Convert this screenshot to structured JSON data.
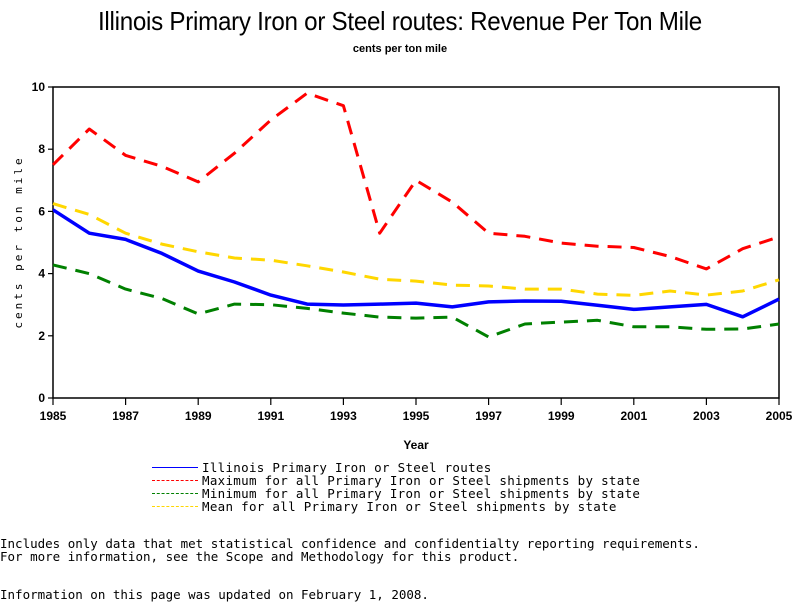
{
  "chart_data": {
    "type": "line",
    "title": "Illinois Primary Iron or Steel routes: Revenue Per Ton Mile",
    "subtitle": "cents per ton mile",
    "xlabel": "Year",
    "ylabel": "cents per ton mile",
    "xlim": [
      1985,
      2005
    ],
    "ylim": [
      0,
      10
    ],
    "x_ticks": [
      1985,
      1987,
      1989,
      1991,
      1993,
      1995,
      1997,
      1999,
      2001,
      2003,
      2005
    ],
    "x_tick_labels": [
      "1985",
      "1987",
      "1989",
      "1991",
      "1993",
      "1995",
      "1997",
      "1999",
      "2001",
      "2003",
      "2005"
    ],
    "y_ticks": [
      0,
      2,
      4,
      6,
      8,
      10
    ],
    "y_tick_labels": [
      "0",
      "2",
      "4",
      "6",
      "8",
      "10"
    ],
    "grid": false,
    "legend_position": "bottom",
    "x": [
      1985,
      1986,
      1987,
      1988,
      1989,
      1990,
      1991,
      1992,
      1993,
      1994,
      1995,
      1996,
      1997,
      1998,
      1999,
      2000,
      2001,
      2002,
      2003,
      2004,
      2005
    ],
    "series": [
      {
        "name": "Illinois Primary Iron or Steel routes",
        "color": "#0000ff",
        "style": "solid",
        "values": [
          6.05,
          5.3,
          5.1,
          4.65,
          4.08,
          3.73,
          3.31,
          3.02,
          2.99,
          3.02,
          3.05,
          2.93,
          3.09,
          3.12,
          3.11,
          2.98,
          2.85,
          2.93,
          3.01,
          2.61,
          3.18
        ]
      },
      {
        "name": "Maximum for all Primary Iron or Steel shipments by state",
        "color": "#ff0000",
        "style": "dashed",
        "values": [
          7.5,
          8.65,
          7.8,
          7.45,
          6.95,
          7.87,
          8.94,
          9.8,
          9.4,
          5.3,
          7.0,
          6.3,
          5.3,
          5.2,
          4.98,
          4.88,
          4.84,
          4.55,
          4.15,
          4.8,
          5.18
        ]
      },
      {
        "name": "Minimum for all Primary Iron or Steel shipments by state",
        "color": "#008000",
        "style": "dashed",
        "values": [
          4.28,
          4.0,
          3.5,
          3.2,
          2.7,
          3.02,
          3.0,
          2.88,
          2.73,
          2.6,
          2.57,
          2.6,
          1.96,
          2.38,
          2.44,
          2.5,
          2.29,
          2.29,
          2.21,
          2.22,
          2.38
        ]
      },
      {
        "name": "Mean for all Primary Iron or Steel shipments by state",
        "color": "#ffd700",
        "style": "dashed",
        "values": [
          6.25,
          5.9,
          5.3,
          4.95,
          4.7,
          4.5,
          4.43,
          4.25,
          4.05,
          3.82,
          3.76,
          3.63,
          3.6,
          3.5,
          3.5,
          3.34,
          3.3,
          3.44,
          3.31,
          3.44,
          3.8
        ]
      }
    ]
  },
  "notes": {
    "line1": "Includes only data that met statistical confidence and confidentialty reporting requirements.",
    "line2": "For more information, see the Scope and Methodology for this product.",
    "updated": "Information on this page was updated on February 1, 2008."
  }
}
